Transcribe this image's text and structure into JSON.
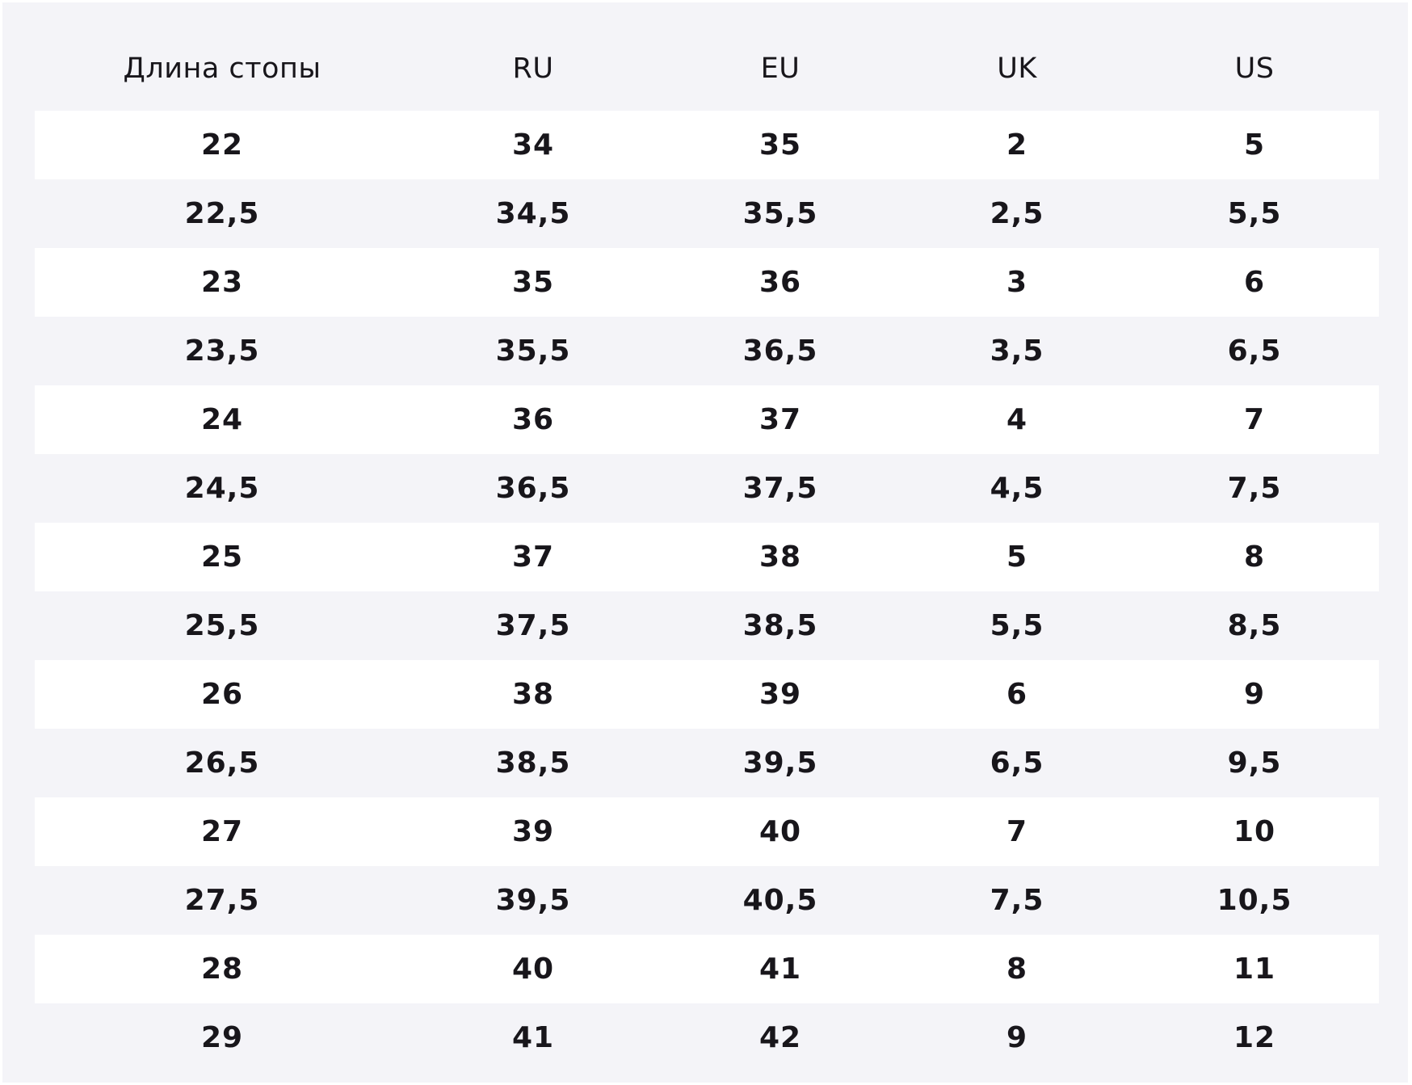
{
  "table": {
    "headers": [
      "Длина стопы",
      "RU",
      "EU",
      "UK",
      "US"
    ],
    "rows": [
      [
        "22",
        "34",
        "35",
        "2",
        "5"
      ],
      [
        "22,5",
        "34,5",
        "35,5",
        "2,5",
        "5,5"
      ],
      [
        "23",
        "35",
        "36",
        "3",
        "6"
      ],
      [
        "23,5",
        "35,5",
        "36,5",
        "3,5",
        "6,5"
      ],
      [
        "24",
        "36",
        "37",
        "4",
        "7"
      ],
      [
        "24,5",
        "36,5",
        "37,5",
        "4,5",
        "7,5"
      ],
      [
        "25",
        "37",
        "38",
        "5",
        "8"
      ],
      [
        "25,5",
        "37,5",
        "38,5",
        "5,5",
        "8,5"
      ],
      [
        "26",
        "38",
        "39",
        "6",
        "9"
      ],
      [
        "26,5",
        "38,5",
        "39,5",
        "6,5",
        "9,5"
      ],
      [
        "27",
        "39",
        "40",
        "7",
        "10"
      ],
      [
        "27,5",
        "39,5",
        "40,5",
        "7,5",
        "10,5"
      ],
      [
        "28",
        "40",
        "41",
        "8",
        "11"
      ],
      [
        "29",
        "41",
        "42",
        "9",
        "12"
      ]
    ]
  },
  "colors": {
    "background": "#f4f4f8",
    "row_alt": "#ffffff",
    "text": "#18161b"
  }
}
